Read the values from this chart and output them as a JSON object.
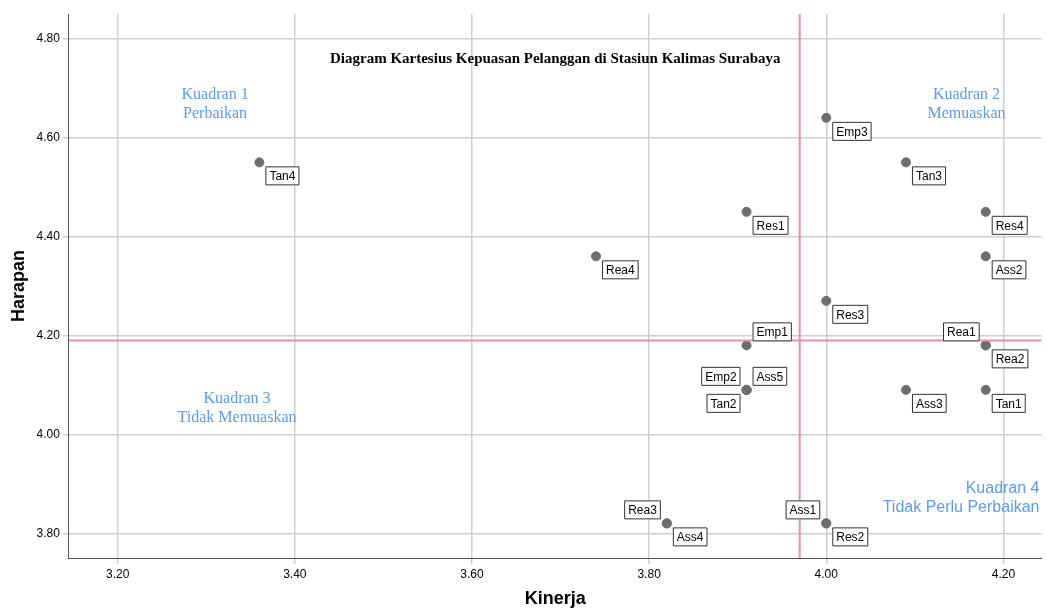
{
  "chart_data": {
    "type": "scatter",
    "title": "Diagram Kartesius Kepuasan Pelanggan di Stasiun Kalimas Surabaya",
    "xlabel": "Kinerja",
    "ylabel": "Harapan",
    "series": [
      {
        "color": "#6e6e6e",
        "x": [
          3.36,
          3.74,
          3.91,
          4.0,
          4.09,
          4.18,
          4.18,
          4.0,
          3.91,
          4.18,
          4.18,
          3.91,
          3.91,
          3.91,
          4.09,
          4.18,
          3.82,
          3.82,
          4.0,
          4.0
        ],
        "values": [
          4.55,
          4.36,
          4.45,
          4.64,
          4.55,
          4.45,
          4.36,
          4.27,
          4.18,
          4.18,
          4.18,
          4.09,
          4.09,
          4.09,
          4.09,
          4.09,
          3.82,
          3.82,
          3.82,
          3.82
        ],
        "value_labels": [
          "Tan4",
          "Rea4",
          "Res1",
          "Emp3",
          "Tan3",
          "Res4",
          "Ass2",
          "Res3",
          "Emp1",
          "Rea1",
          "Rea2",
          "Emp2",
          "Ass5",
          "Tan2",
          "Ass3",
          "Tan1",
          "Rea3",
          "Ass4",
          "Ass1",
          "Res2"
        ]
      }
    ],
    "xlim": [
      3.145,
      4.243
    ],
    "ylim": [
      3.75,
      4.85
    ],
    "xticks": [
      {
        "value": 3.2,
        "label": "3.20"
      },
      {
        "value": 3.4,
        "label": "3.40"
      },
      {
        "value": 3.6,
        "label": "3.60"
      },
      {
        "value": 3.8,
        "label": "3.80"
      },
      {
        "value": 4.0,
        "label": "4.00"
      },
      {
        "value": 4.2,
        "label": "4.20"
      }
    ],
    "yticks": [
      {
        "value": 3.8,
        "label": "3.80"
      },
      {
        "value": 4.0,
        "label": "4.00"
      },
      {
        "value": 4.2,
        "label": "4.20"
      },
      {
        "value": 4.4,
        "label": "4.40"
      },
      {
        "value": 4.6,
        "label": "4.60"
      },
      {
        "value": 4.8,
        "label": "4.80"
      }
    ],
    "ref_lines": [
      {
        "axis": "x",
        "value": 3.97,
        "color": "#f08cb4"
      },
      {
        "axis": "y",
        "value": 4.19,
        "color": "#f08cb4"
      }
    ],
    "annotations": [
      "Kuadran 1\nPerbaikan",
      "Kuadran 2\nMemuaskan",
      "Kuadran 3\nTidak Memuaskan",
      "Kuadran 4\nTidak Perlu Perbaikan"
    ],
    "grid": true,
    "legend": false,
    "marker": "circle"
  }
}
